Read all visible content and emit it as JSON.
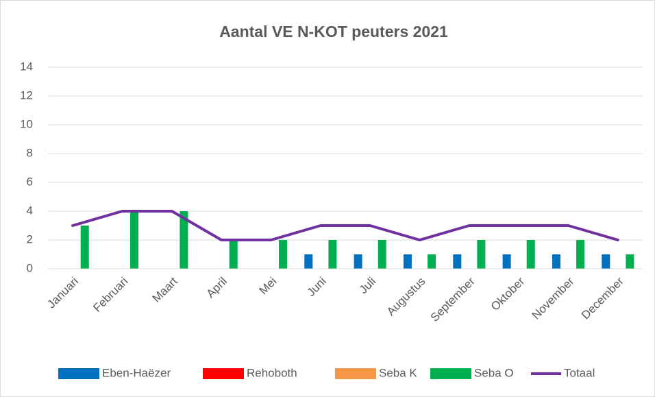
{
  "chart_data": {
    "type": "bar",
    "title": "Aantal VE N-KOT peuters 2021",
    "categories": [
      "Januari",
      "Februari",
      "Maart",
      "April",
      "Mei",
      "Juni",
      "Juli",
      "Augustus",
      "September",
      "Oktober",
      "November",
      "December"
    ],
    "series": [
      {
        "name": "Eben-Haëzer",
        "color": "#0070c0",
        "values": [
          0,
          0,
          0,
          0,
          0,
          1,
          1,
          1,
          1,
          1,
          1,
          1
        ]
      },
      {
        "name": "Rehoboth",
        "color": "#ff0000",
        "values": [
          0,
          0,
          0,
          0,
          0,
          0,
          0,
          0,
          0,
          0,
          0,
          0
        ]
      },
      {
        "name": "Seba K",
        "color": "#f79646",
        "values": [
          0,
          0,
          0,
          0,
          0,
          0,
          0,
          0,
          0,
          0,
          0,
          0
        ]
      },
      {
        "name": "Seba O",
        "color": "#00b050",
        "values": [
          3,
          4,
          4,
          2,
          2,
          2,
          2,
          1,
          2,
          2,
          2,
          1
        ]
      },
      {
        "name": "Totaal",
        "color": "#7030a0",
        "type": "line",
        "values": [
          3,
          4,
          4,
          2,
          2,
          3,
          3,
          2,
          3,
          3,
          3,
          2
        ]
      }
    ],
    "ylim": [
      0,
      14
    ],
    "yticks": [
      0,
      2,
      4,
      6,
      8,
      10,
      12,
      14
    ],
    "grid": true,
    "legend": "bottom"
  }
}
